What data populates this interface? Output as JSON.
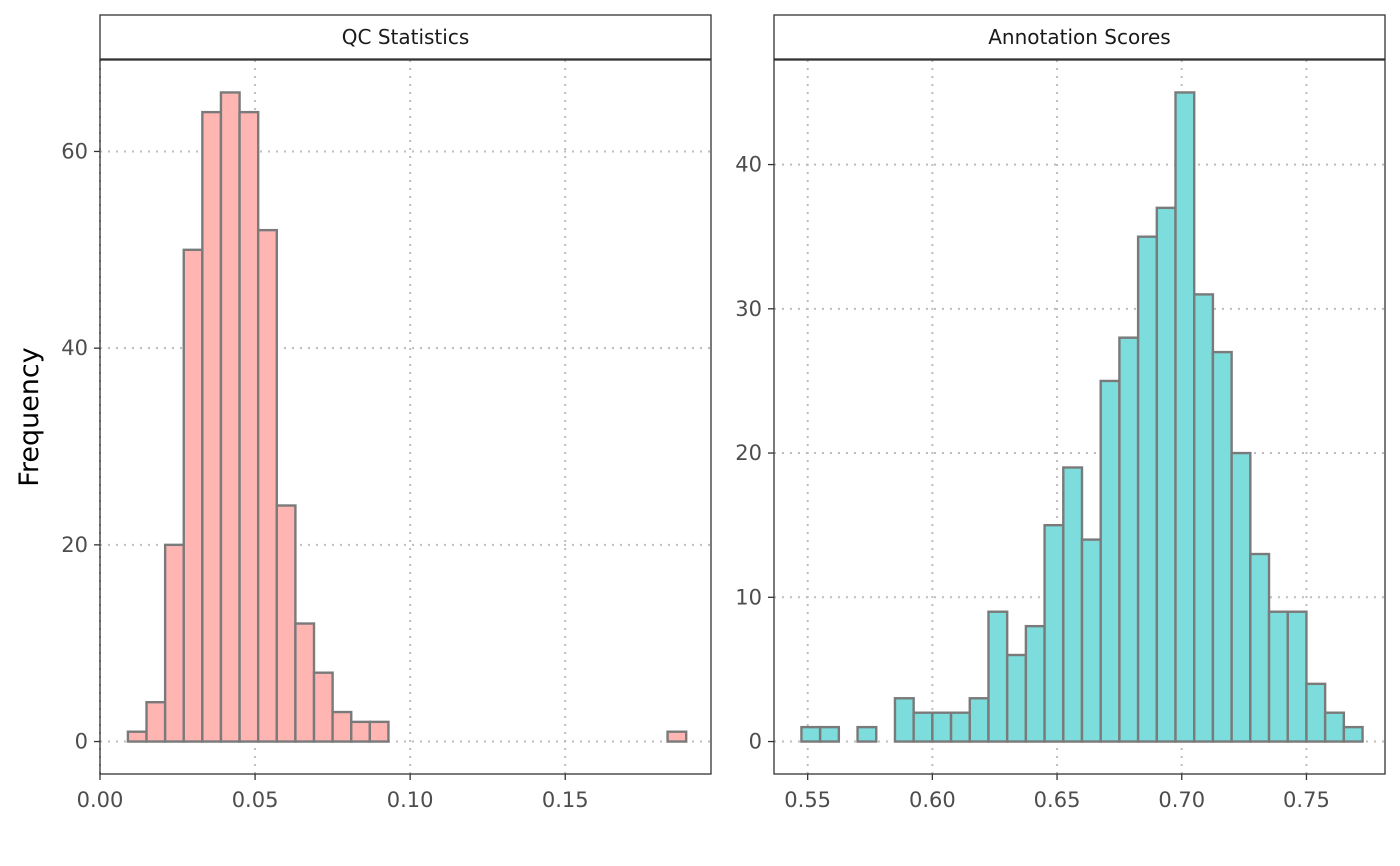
{
  "chart_data": [
    {
      "type": "bar",
      "subtype": "histogram",
      "title": "QC Statistics",
      "ylabel": "Frequency",
      "xlabel": "",
      "fill": "#ffb6b3",
      "outline": "#7a7a7a",
      "xlim": [
        0.0,
        0.197
      ],
      "ylim": [
        -3.3,
        69.3
      ],
      "xticks": [
        "0.00",
        "0.05",
        "0.10",
        "0.15"
      ],
      "xtick_values": [
        0.0,
        0.05,
        0.1,
        0.15
      ],
      "yticks": [
        "0",
        "20",
        "40",
        "60"
      ],
      "ytick_values": [
        0,
        20,
        40,
        60
      ],
      "grid": "dotted",
      "bin_start": 0.009,
      "bin_width": 0.006,
      "values": [
        1,
        4,
        20,
        50,
        64,
        66,
        64,
        52,
        24,
        12,
        7,
        3,
        2,
        2,
        0,
        0,
        0,
        0,
        0,
        0,
        0,
        0,
        0,
        0,
        0,
        0,
        0,
        0,
        0,
        1
      ]
    },
    {
      "type": "bar",
      "subtype": "histogram",
      "title": "Annotation Scores",
      "ylabel": "",
      "xlabel": "",
      "fill": "#7ddcdc",
      "outline": "#7a7a7a",
      "xlim": [
        0.5365,
        0.7815
      ],
      "ylim": [
        -2.25,
        47.25
      ],
      "xticks": [
        "0.55",
        "0.60",
        "0.65",
        "0.70",
        "0.75"
      ],
      "xtick_values": [
        0.55,
        0.6,
        0.65,
        0.7,
        0.75
      ],
      "yticks": [
        "0",
        "10",
        "20",
        "30",
        "40"
      ],
      "ytick_values": [
        0,
        10,
        20,
        30,
        40
      ],
      "grid": "dotted",
      "bin_start": 0.5475,
      "bin_width": 0.0075,
      "values": [
        1,
        1,
        0,
        1,
        0,
        3,
        2,
        2,
        2,
        3,
        9,
        6,
        8,
        15,
        19,
        14,
        25,
        28,
        35,
        37,
        45,
        31,
        27,
        20,
        13,
        9,
        9,
        4,
        2,
        1
      ]
    }
  ]
}
